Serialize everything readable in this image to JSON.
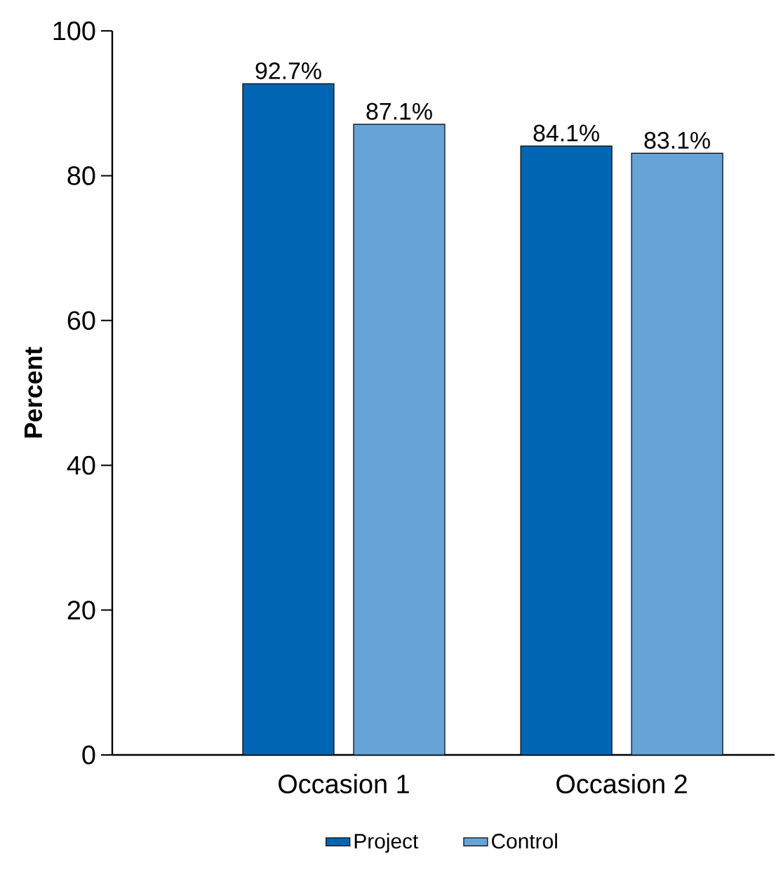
{
  "chart_data": {
    "type": "bar",
    "ylabel": "Percent",
    "categories": [
      "Occasion 1",
      "Occasion 2"
    ],
    "series": [
      {
        "name": "Project",
        "color": "#0066b3",
        "values": [
          92.7,
          84.1
        ],
        "value_labels": [
          "92.7%",
          "84.1%"
        ]
      },
      {
        "name": "Control",
        "color": "#66a3d6",
        "values": [
          87.1,
          83.1
        ],
        "value_labels": [
          "87.1%",
          "83.1%"
        ]
      }
    ],
    "ylim": [
      0,
      100
    ],
    "yticks": [
      0,
      20,
      40,
      60,
      80,
      100
    ],
    "legend": "bottom",
    "grid": false
  }
}
